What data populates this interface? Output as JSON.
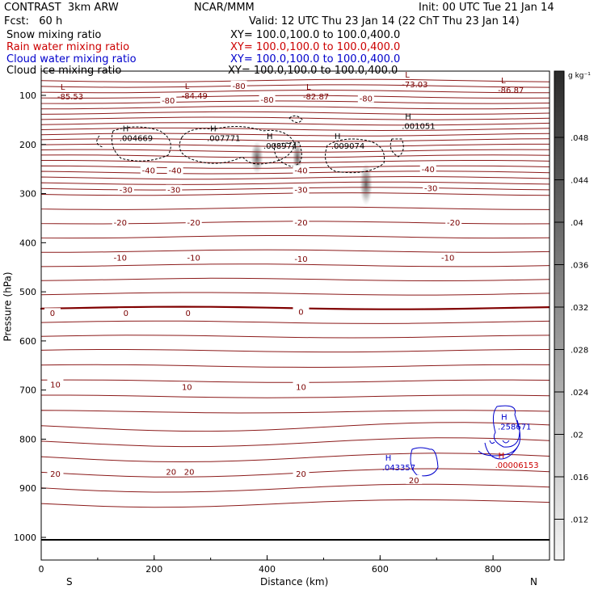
{
  "header": {
    "model": "CONTRAST  3km ARW",
    "org": "NCAR/MMM",
    "init": "Init: 00 UTC Tue 21 Jan 14",
    "fcst": "Fcst:   60 h",
    "valid": "Valid: 12 UTC Thu 23 Jan 14 (22 ChT Thu 23 Jan 14)"
  },
  "fields": [
    {
      "name": "Snow mixing ratio",
      "xy": "XY= 100.0,100.0 to 100.0,400.0",
      "color": "#000000"
    },
    {
      "name": "Rain water mixing ratio",
      "xy": "XY= 100.0,100.0 to 100.0,400.0",
      "color": "#cc0000"
    },
    {
      "name": "Cloud water mixing ratio",
      "xy": "XY= 100.0,100.0 to 100.0,400.0",
      "color": "#0000cc"
    },
    {
      "name": "Cloud ice mixing ratio",
      "xy": "XY= 100.0,100.0 to 100.0,400.0",
      "color": "#000000"
    }
  ],
  "colorbar": {
    "unit": "g kg⁻¹",
    "labels": [
      ".048",
      ".044",
      ".04",
      ".036",
      ".032",
      ".028",
      ".024",
      ".02",
      ".016",
      ".012"
    ]
  },
  "chart_data": {
    "type": "line",
    "xlabel": "Distance (km)",
    "ylabel": "Pressure (hPa)",
    "xlim": [
      0,
      900
    ],
    "ylim": [
      1040,
      50
    ],
    "x_ticks": [
      "0",
      "200",
      "400",
      "600",
      "800"
    ],
    "y_ticks": [
      "100",
      "200",
      "300",
      "400",
      "500",
      "600",
      "700",
      "800",
      "900",
      "1000"
    ],
    "direction_labels": {
      "left": "S",
      "right": "N"
    },
    "temperature_contours": [
      {
        "label": "-80",
        "p": 80
      },
      {
        "label": "-40",
        "p": 250
      },
      {
        "label": "-30",
        "p": 290
      },
      {
        "label": "-20",
        "p": 360
      },
      {
        "label": "-10",
        "p": 430
      },
      {
        "label": "0",
        "p": 545
      },
      {
        "label": "10",
        "p": 690
      },
      {
        "label": "20",
        "p": 870
      }
    ],
    "contour_labels": [
      {
        "text": "-80",
        "x": 350,
        "p": 80
      },
      {
        "text": "-80",
        "x": 225,
        "p": 110
      },
      {
        "text": "-80",
        "x": 400,
        "p": 108
      },
      {
        "text": "-80",
        "x": 575,
        "p": 106
      },
      {
        "text": "-40",
        "x": 190,
        "p": 252
      },
      {
        "text": "-40",
        "x": 237,
        "p": 252
      },
      {
        "text": "-40",
        "x": 460,
        "p": 252
      },
      {
        "text": "-40",
        "x": 685,
        "p": 250
      },
      {
        "text": "-30",
        "x": 150,
        "p": 292
      },
      {
        "text": "-30",
        "x": 235,
        "p": 292
      },
      {
        "text": "-30",
        "x": 460,
        "p": 292
      },
      {
        "text": "-30",
        "x": 690,
        "p": 288
      },
      {
        "text": "-20",
        "x": 140,
        "p": 358
      },
      {
        "text": "-20",
        "x": 270,
        "p": 358
      },
      {
        "text": "-20",
        "x": 460,
        "p": 358
      },
      {
        "text": "-20",
        "x": 730,
        "p": 358
      },
      {
        "text": "-10",
        "x": 140,
        "p": 430
      },
      {
        "text": "-10",
        "x": 270,
        "p": 430
      },
      {
        "text": "-10",
        "x": 460,
        "p": 432
      },
      {
        "text": "-10",
        "x": 720,
        "p": 430
      },
      {
        "text": "0",
        "x": 20,
        "p": 543
      },
      {
        "text": "0",
        "x": 150,
        "p": 543
      },
      {
        "text": "0",
        "x": 260,
        "p": 543
      },
      {
        "text": "0",
        "x": 460,
        "p": 540
      },
      {
        "text": "10",
        "x": 25,
        "p": 688
      },
      {
        "text": "10",
        "x": 258,
        "p": 693
      },
      {
        "text": "10",
        "x": 460,
        "p": 693
      },
      {
        "text": "20",
        "x": 25,
        "p": 870
      },
      {
        "text": "20",
        "x": 230,
        "p": 866
      },
      {
        "text": "20",
        "x": 262,
        "p": 866
      },
      {
        "text": "20",
        "x": 460,
        "p": 870
      },
      {
        "text": "20",
        "x": 660,
        "p": 883
      }
    ],
    "extrema": [
      {
        "type": "L",
        "value": "-85.53",
        "x": 60,
        "p": 105,
        "color": "#7a0000"
      },
      {
        "type": "L",
        "value": "-84.49",
        "x": 280,
        "p": 103,
        "color": "#7a0000"
      },
      {
        "type": "L",
        "value": "-82.87",
        "x": 495,
        "p": 105,
        "color": "#7a0000"
      },
      {
        "type": "L",
        "value": "-73.03",
        "x": 670,
        "p": 80,
        "color": "#7a0000"
      },
      {
        "type": "L",
        "value": "-86.87",
        "x": 840,
        "p": 92,
        "color": "#7a0000"
      },
      {
        "type": "H",
        "value": ".004669",
        "x": 170,
        "p": 190,
        "color": "#000000"
      },
      {
        "type": "H",
        "value": ".007771",
        "x": 325,
        "p": 190,
        "color": "#000000"
      },
      {
        "type": "H",
        "value": ".008974",
        "x": 425,
        "p": 205,
        "color": "#000000"
      },
      {
        "type": "H",
        "value": ".009074",
        "x": 545,
        "p": 205,
        "color": "#000000"
      },
      {
        "type": "H",
        "value": ".001051",
        "x": 670,
        "p": 165,
        "color": "#000000"
      },
      {
        "type": "H",
        "value": ".043357",
        "x": 635,
        "p": 860,
        "color": "#0000cc"
      },
      {
        "type": "H",
        "value": ".258671",
        "x": 840,
        "p": 777,
        "color": "#0000cc"
      },
      {
        "type": "H",
        "value": ".00006153",
        "x": 835,
        "p": 855,
        "color": "#cc0000"
      }
    ]
  }
}
